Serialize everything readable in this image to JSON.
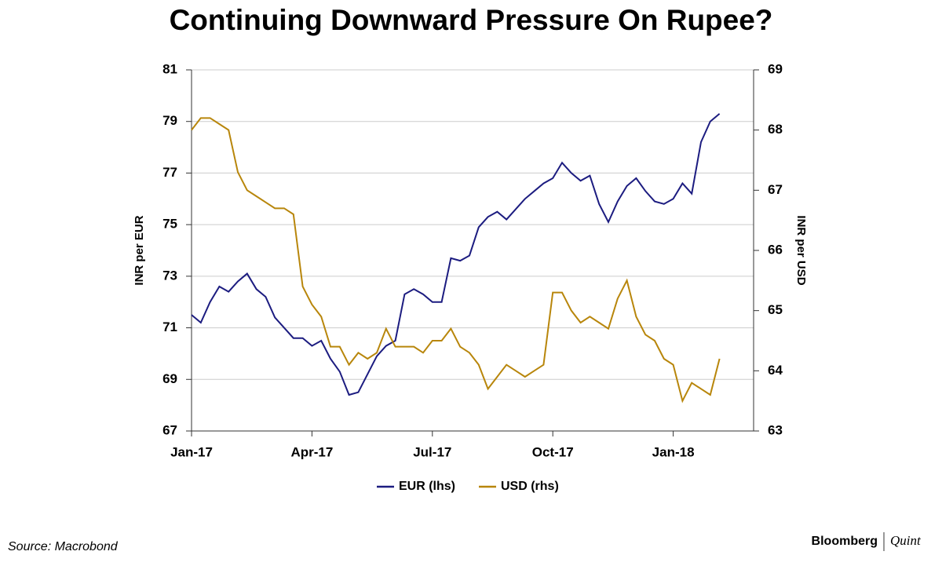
{
  "chart_data": {
    "type": "line",
    "title": "Continuing Downward Pressure On Rupee?",
    "y_label": "INR per EUR",
    "y2_label": "INR per USD",
    "categories": [
      "Jan-17",
      null,
      null,
      null,
      null,
      null,
      null,
      null,
      null,
      null,
      null,
      null,
      null,
      "Apr-17",
      null,
      null,
      null,
      null,
      null,
      null,
      null,
      null,
      null,
      null,
      null,
      null,
      "Jul-17",
      null,
      null,
      null,
      null,
      null,
      null,
      null,
      null,
      null,
      null,
      null,
      null,
      "Oct-17",
      null,
      null,
      null,
      null,
      null,
      null,
      null,
      null,
      null,
      null,
      null,
      null,
      "Jan-18",
      null,
      null,
      null,
      null,
      null
    ],
    "series": [
      {
        "name": "EUR (lhs)",
        "color": "#1c1c80",
        "axis": "y",
        "values": [
          71.5,
          71.2,
          72.0,
          72.6,
          72.4,
          72.8,
          73.1,
          72.5,
          72.2,
          71.4,
          71.0,
          70.6,
          70.6,
          70.3,
          70.5,
          69.8,
          69.3,
          68.4,
          68.5,
          69.2,
          69.9,
          70.3,
          70.5,
          72.3,
          72.5,
          72.3,
          72.0,
          72.0,
          73.7,
          73.6,
          73.8,
          74.9,
          75.3,
          75.5,
          75.2,
          75.6,
          76.0,
          76.3,
          76.6,
          76.8,
          77.4,
          77.0,
          76.7,
          76.9,
          75.8,
          75.1,
          75.9,
          76.5,
          76.8,
          76.3,
          75.9,
          75.8,
          76.0,
          76.6,
          76.2,
          78.2,
          79.0,
          79.3
        ]
      },
      {
        "name": "USD (rhs)",
        "color": "#b8860b",
        "axis": "y2",
        "values": [
          68.0,
          68.2,
          68.2,
          68.1,
          68.0,
          67.3,
          67.0,
          66.9,
          66.8,
          66.7,
          66.7,
          66.6,
          65.4,
          65.1,
          64.9,
          64.4,
          64.4,
          64.1,
          64.3,
          64.2,
          64.3,
          64.7,
          64.4,
          64.4,
          64.4,
          64.3,
          64.5,
          64.5,
          64.7,
          64.4,
          64.3,
          64.1,
          63.7,
          63.9,
          64.1,
          64.0,
          63.9,
          64.0,
          64.1,
          65.3,
          65.3,
          65.0,
          64.8,
          64.9,
          64.8,
          64.7,
          65.2,
          65.5,
          64.9,
          64.6,
          64.5,
          64.2,
          64.1,
          63.5,
          63.8,
          63.7,
          63.6,
          64.2
        ]
      }
    ],
    "ylim": [
      67,
      81
    ],
    "yticks": [
      67,
      69,
      71,
      73,
      75,
      77,
      79,
      81
    ],
    "y2lim": [
      63,
      69
    ],
    "y2ticks": [
      63,
      64,
      65,
      66,
      67,
      68,
      69
    ],
    "grid": true,
    "legend": "bottom",
    "source": "Source: Macrobond",
    "brand": [
      "Bloomberg",
      "Quint"
    ]
  }
}
